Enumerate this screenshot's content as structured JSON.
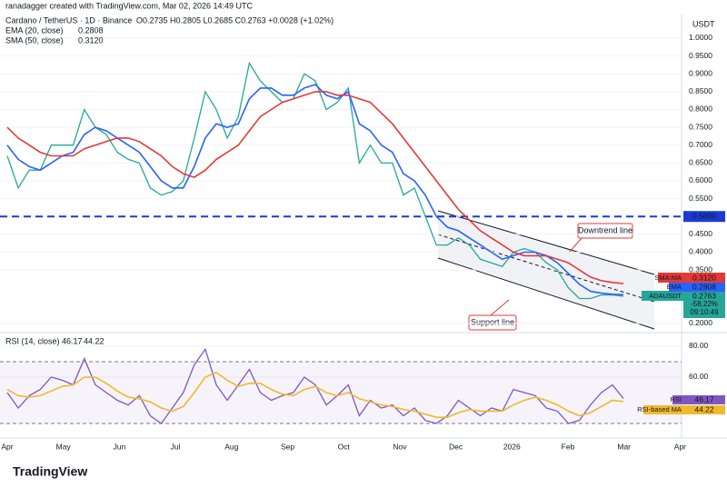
{
  "chart_data": [
    {
      "type": "line",
      "subtitle": "ranadagger created with TradingView.com, Mar 02, 2026 14:49 UTC",
      "title": "Cardano / TetherUS · 1D · Binance",
      "ohlc": "O0.2735 H0.2805 L0.2685 C0.2763 +0.0028 (+1.02%)",
      "unit": "USDT",
      "xticks": [
        "Apr",
        "May",
        "Jun",
        "Jul",
        "Aug",
        "Sep",
        "Oct",
        "Nov",
        "Dec",
        "2026",
        "Feb",
        "Mar",
        "Apr"
      ],
      "ylim": [
        0.177,
        1.056
      ],
      "yticks": [
        {
          "value": 1.0,
          "label": "1.0000"
        },
        {
          "value": 0.95,
          "label": "0.9500"
        },
        {
          "value": 0.9,
          "label": "0.9000"
        },
        {
          "value": 0.85,
          "label": "0.8500"
        },
        {
          "value": 0.8,
          "label": "0.8000"
        },
        {
          "value": 0.75,
          "label": "0.7500"
        },
        {
          "value": 0.7,
          "label": "0.7000"
        },
        {
          "value": 0.65,
          "label": "0.6500"
        },
        {
          "value": 0.6,
          "label": "0.6000"
        },
        {
          "value": 0.55,
          "label": "0.5500"
        },
        {
          "value": 0.5,
          "label": "0.5000"
        },
        {
          "value": 0.45,
          "label": "0.4500"
        },
        {
          "value": 0.4,
          "label": "0.4000"
        },
        {
          "value": 0.35,
          "label": "0.3500"
        },
        {
          "value": 0.2,
          "label": "0.2000"
        }
      ],
      "hline": {
        "value": 0.5,
        "label": "0.5000",
        "color": "#1a3bd6"
      },
      "series": [
        {
          "name": "ADAUSDT",
          "color": "#26a69a",
          "value_label": "0.2763",
          "change": "-58.22%",
          "countdown": "09:10:49",
          "values": [
            0.67,
            0.58,
            0.63,
            0.63,
            0.7,
            0.7,
            0.7,
            0.8,
            0.75,
            0.73,
            0.68,
            0.66,
            0.65,
            0.58,
            0.56,
            0.57,
            0.6,
            0.72,
            0.85,
            0.8,
            0.72,
            0.78,
            0.93,
            0.88,
            0.85,
            0.82,
            0.83,
            0.9,
            0.88,
            0.8,
            0.82,
            0.86,
            0.65,
            0.7,
            0.65,
            0.65,
            0.56,
            0.58,
            0.5,
            0.42,
            0.42,
            0.44,
            0.42,
            0.38,
            0.37,
            0.36,
            0.4,
            0.41,
            0.4,
            0.37,
            0.35,
            0.3,
            0.27,
            0.27,
            0.28,
            0.28,
            0.2763
          ]
        },
        {
          "name": "EMA (20, close)",
          "color": "#2962ff",
          "value_label": "0.2808",
          "tag": "EMA",
          "values": [
            0.7,
            0.66,
            0.64,
            0.63,
            0.65,
            0.67,
            0.68,
            0.73,
            0.75,
            0.74,
            0.72,
            0.7,
            0.68,
            0.64,
            0.6,
            0.58,
            0.58,
            0.64,
            0.72,
            0.76,
            0.75,
            0.76,
            0.83,
            0.86,
            0.86,
            0.84,
            0.84,
            0.86,
            0.87,
            0.84,
            0.83,
            0.85,
            0.76,
            0.74,
            0.7,
            0.68,
            0.62,
            0.6,
            0.56,
            0.5,
            0.47,
            0.46,
            0.44,
            0.42,
            0.4,
            0.38,
            0.39,
            0.4,
            0.4,
            0.39,
            0.37,
            0.34,
            0.31,
            0.29,
            0.285,
            0.282,
            0.2808
          ]
        },
        {
          "name": "SMA (50, close)",
          "color": "#e53935",
          "value_label": "0.3120",
          "tag": "SMA:MA",
          "values": [
            0.75,
            0.72,
            0.7,
            0.68,
            0.67,
            0.67,
            0.67,
            0.69,
            0.7,
            0.71,
            0.72,
            0.72,
            0.71,
            0.69,
            0.67,
            0.64,
            0.62,
            0.61,
            0.63,
            0.66,
            0.68,
            0.7,
            0.74,
            0.78,
            0.8,
            0.82,
            0.83,
            0.84,
            0.85,
            0.85,
            0.84,
            0.84,
            0.83,
            0.82,
            0.79,
            0.76,
            0.72,
            0.68,
            0.64,
            0.6,
            0.56,
            0.52,
            0.49,
            0.46,
            0.44,
            0.42,
            0.4,
            0.39,
            0.39,
            0.39,
            0.38,
            0.37,
            0.35,
            0.33,
            0.32,
            0.315,
            0.312
          ]
        }
      ],
      "annotations": [
        "Downtrend line",
        "Support line"
      ],
      "logo": "TradingView"
    },
    {
      "type": "line",
      "title": "RSI (14, close)",
      "ylim": [
        21.8,
        87.6
      ],
      "yticks": [
        {
          "value": 80,
          "label": "80.00"
        },
        {
          "value": 60,
          "label": "60.00"
        }
      ],
      "bands": [
        70,
        30
      ],
      "series": [
        {
          "name": "RSI",
          "color": "#7e57c2",
          "value_label": "46.17",
          "values": [
            50,
            40,
            48,
            52,
            60,
            58,
            55,
            72,
            55,
            50,
            45,
            42,
            48,
            35,
            30,
            40,
            50,
            68,
            78,
            55,
            45,
            55,
            65,
            50,
            45,
            48,
            50,
            60,
            55,
            42,
            48,
            55,
            35,
            45,
            40,
            42,
            35,
            40,
            32,
            30,
            35,
            45,
            40,
            35,
            40,
            38,
            52,
            50,
            48,
            40,
            38,
            30,
            32,
            42,
            50,
            55,
            46.17
          ]
        },
        {
          "name": "RSI-based MA",
          "color": "#f2b92c",
          "value_label": "44.22",
          "values": [
            52,
            48,
            47,
            48,
            51,
            54,
            55,
            60,
            60,
            56,
            51,
            47,
            46,
            44,
            40,
            38,
            41,
            50,
            60,
            63,
            58,
            54,
            56,
            56,
            52,
            49,
            48,
            52,
            54,
            50,
            48,
            50,
            46,
            44,
            42,
            41,
            39,
            38,
            36,
            34,
            34,
            37,
            39,
            38,
            38,
            38,
            42,
            45,
            47,
            45,
            42,
            38,
            35,
            37,
            41,
            45,
            44.22
          ]
        }
      ]
    }
  ]
}
